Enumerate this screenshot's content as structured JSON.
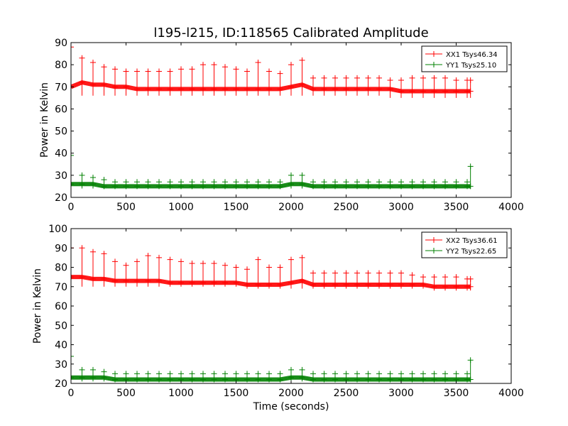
{
  "figure": {
    "title": "l195-l215, ID:118565 Calibrated Amplitude",
    "xlabel": "Time (seconds)"
  },
  "colors": {
    "xx": "#ff0000",
    "yy": "#008000"
  },
  "chart_data": [
    {
      "type": "scatter",
      "marker": "+",
      "ylabel": "Power in Kelvin",
      "xlim": [
        0,
        4000
      ],
      "ylim": [
        20,
        90
      ],
      "xticks": [
        0,
        500,
        1000,
        1500,
        2000,
        2500,
        3000,
        3500,
        4000
      ],
      "yticks": [
        20,
        30,
        40,
        50,
        60,
        70,
        80,
        90
      ],
      "legend_position": "top-right",
      "grid": false,
      "series": [
        {
          "name": "XX1 Tsys46.34",
          "color": "#ff0000",
          "x": [
            0,
            100,
            200,
            300,
            400,
            500,
            600,
            700,
            800,
            900,
            1000,
            1100,
            1200,
            1300,
            1400,
            1500,
            1600,
            1700,
            1800,
            1900,
            2000,
            2100,
            2200,
            2300,
            2400,
            2500,
            2600,
            2700,
            2800,
            2900,
            3000,
            3100,
            3200,
            3300,
            3400,
            3500,
            3600,
            3630
          ],
          "y": [
            70,
            72,
            71,
            71,
            70,
            70,
            69,
            69,
            69,
            69,
            69,
            69,
            69,
            69,
            69,
            69,
            69,
            69,
            69,
            69,
            70,
            71,
            69,
            69,
            69,
            69,
            69,
            69,
            69,
            69,
            68,
            68,
            68,
            68,
            68,
            68,
            68,
            68
          ],
          "y_low": [
            66,
            66,
            66,
            66,
            66,
            66,
            66,
            66,
            66,
            66,
            66,
            66,
            66,
            66,
            66,
            66,
            66,
            66,
            66,
            66,
            66,
            66,
            66,
            66,
            66,
            66,
            66,
            66,
            66,
            65,
            65,
            65,
            65,
            65,
            65,
            65,
            65,
            65
          ],
          "y_high": [
            88,
            83,
            81,
            79,
            78,
            77,
            77,
            77,
            77,
            77,
            78,
            78,
            80,
            80,
            79,
            78,
            77,
            81,
            77,
            76,
            80,
            82,
            74,
            74,
            74,
            74,
            74,
            74,
            74,
            73,
            73,
            74,
            74,
            74,
            74,
            73,
            73,
            73
          ]
        },
        {
          "name": "YY1 Tsys25.10",
          "color": "#008000",
          "x": [
            0,
            100,
            200,
            300,
            400,
            500,
            600,
            700,
            800,
            900,
            1000,
            1100,
            1200,
            1300,
            1400,
            1500,
            1600,
            1700,
            1800,
            1900,
            2000,
            2100,
            2200,
            2300,
            2400,
            2500,
            2600,
            2700,
            2800,
            2900,
            3000,
            3100,
            3200,
            3300,
            3400,
            3500,
            3600,
            3630
          ],
          "y": [
            26,
            26,
            26,
            25,
            25,
            25,
            25,
            25,
            25,
            25,
            25,
            25,
            25,
            25,
            25,
            25,
            25,
            25,
            25,
            25,
            26,
            26,
            25,
            25,
            25,
            25,
            25,
            25,
            25,
            25,
            25,
            25,
            25,
            25,
            25,
            25,
            25,
            25
          ],
          "y_low": [
            24,
            24,
            24,
            24,
            24,
            24,
            24,
            24,
            24,
            24,
            24,
            24,
            24,
            24,
            24,
            24,
            24,
            24,
            24,
            24,
            24,
            24,
            24,
            24,
            24,
            24,
            24,
            24,
            24,
            24,
            24,
            24,
            24,
            24,
            24,
            24,
            24,
            24
          ],
          "y_high": [
            39,
            30,
            29,
            28,
            27,
            27,
            27,
            27,
            27,
            27,
            27,
            27,
            27,
            27,
            27,
            27,
            27,
            27,
            27,
            27,
            30,
            30,
            27,
            27,
            27,
            27,
            27,
            27,
            27,
            27,
            27,
            27,
            27,
            27,
            27,
            27,
            27,
            34
          ]
        }
      ]
    },
    {
      "type": "scatter",
      "marker": "+",
      "ylabel": "Power in Kelvin",
      "xlabel": "Time (seconds)",
      "xlim": [
        0,
        4000
      ],
      "ylim": [
        20,
        100
      ],
      "xticks": [
        0,
        500,
        1000,
        1500,
        2000,
        2500,
        3000,
        3500,
        4000
      ],
      "yticks": [
        20,
        30,
        40,
        50,
        60,
        70,
        80,
        90,
        100
      ],
      "legend_position": "top-right",
      "grid": false,
      "series": [
        {
          "name": "XX2 Tsys36.61",
          "color": "#ff0000",
          "x": [
            0,
            100,
            200,
            300,
            400,
            500,
            600,
            700,
            800,
            900,
            1000,
            1100,
            1200,
            1300,
            1400,
            1500,
            1600,
            1700,
            1800,
            1900,
            2000,
            2100,
            2200,
            2300,
            2400,
            2500,
            2600,
            2700,
            2800,
            2900,
            3000,
            3100,
            3200,
            3300,
            3400,
            3500,
            3600,
            3630
          ],
          "y": [
            75,
            75,
            74,
            74,
            73,
            73,
            73,
            73,
            73,
            72,
            72,
            72,
            72,
            72,
            72,
            72,
            71,
            71,
            71,
            71,
            72,
            73,
            71,
            71,
            71,
            71,
            71,
            71,
            71,
            71,
            71,
            71,
            71,
            70,
            70,
            70,
            70,
            70
          ],
          "y_low": [
            70,
            70,
            70,
            70,
            70,
            70,
            70,
            70,
            70,
            70,
            70,
            70,
            70,
            70,
            70,
            70,
            69,
            69,
            69,
            69,
            69,
            69,
            69,
            69,
            69,
            69,
            69,
            69,
            69,
            69,
            69,
            69,
            69,
            68,
            68,
            68,
            68,
            68
          ],
          "y_high": [
            90,
            90,
            88,
            87,
            83,
            81,
            83,
            86,
            85,
            84,
            83,
            82,
            82,
            82,
            81,
            80,
            79,
            84,
            80,
            80,
            84,
            85,
            77,
            77,
            77,
            77,
            77,
            77,
            77,
            77,
            77,
            76,
            75,
            75,
            75,
            75,
            74,
            74
          ]
        },
        {
          "name": "YY2 Tsys22.65",
          "color": "#008000",
          "x": [
            0,
            100,
            200,
            300,
            400,
            500,
            600,
            700,
            800,
            900,
            1000,
            1100,
            1200,
            1300,
            1400,
            1500,
            1600,
            1700,
            1800,
            1900,
            2000,
            2100,
            2200,
            2300,
            2400,
            2500,
            2600,
            2700,
            2800,
            2900,
            3000,
            3100,
            3200,
            3300,
            3400,
            3500,
            3600,
            3630
          ],
          "y": [
            23,
            23,
            23,
            23,
            22,
            22,
            22,
            22,
            22,
            22,
            22,
            22,
            22,
            22,
            22,
            22,
            22,
            22,
            22,
            22,
            23,
            23,
            22,
            22,
            22,
            22,
            22,
            22,
            22,
            22,
            22,
            22,
            22,
            22,
            22,
            22,
            22,
            22
          ],
          "y_low": [
            21,
            21,
            21,
            21,
            21,
            21,
            21,
            21,
            21,
            21,
            21,
            21,
            21,
            21,
            21,
            21,
            21,
            21,
            21,
            21,
            21,
            21,
            21,
            21,
            21,
            21,
            21,
            21,
            21,
            21,
            21,
            21,
            21,
            21,
            21,
            21,
            21,
            21
          ],
          "y_high": [
            34,
            27,
            27,
            26,
            25,
            25,
            25,
            25,
            25,
            25,
            25,
            25,
            25,
            25,
            25,
            25,
            25,
            25,
            25,
            25,
            27,
            27,
            25,
            25,
            25,
            25,
            25,
            25,
            25,
            25,
            25,
            25,
            25,
            25,
            25,
            25,
            25,
            32
          ]
        }
      ]
    }
  ]
}
